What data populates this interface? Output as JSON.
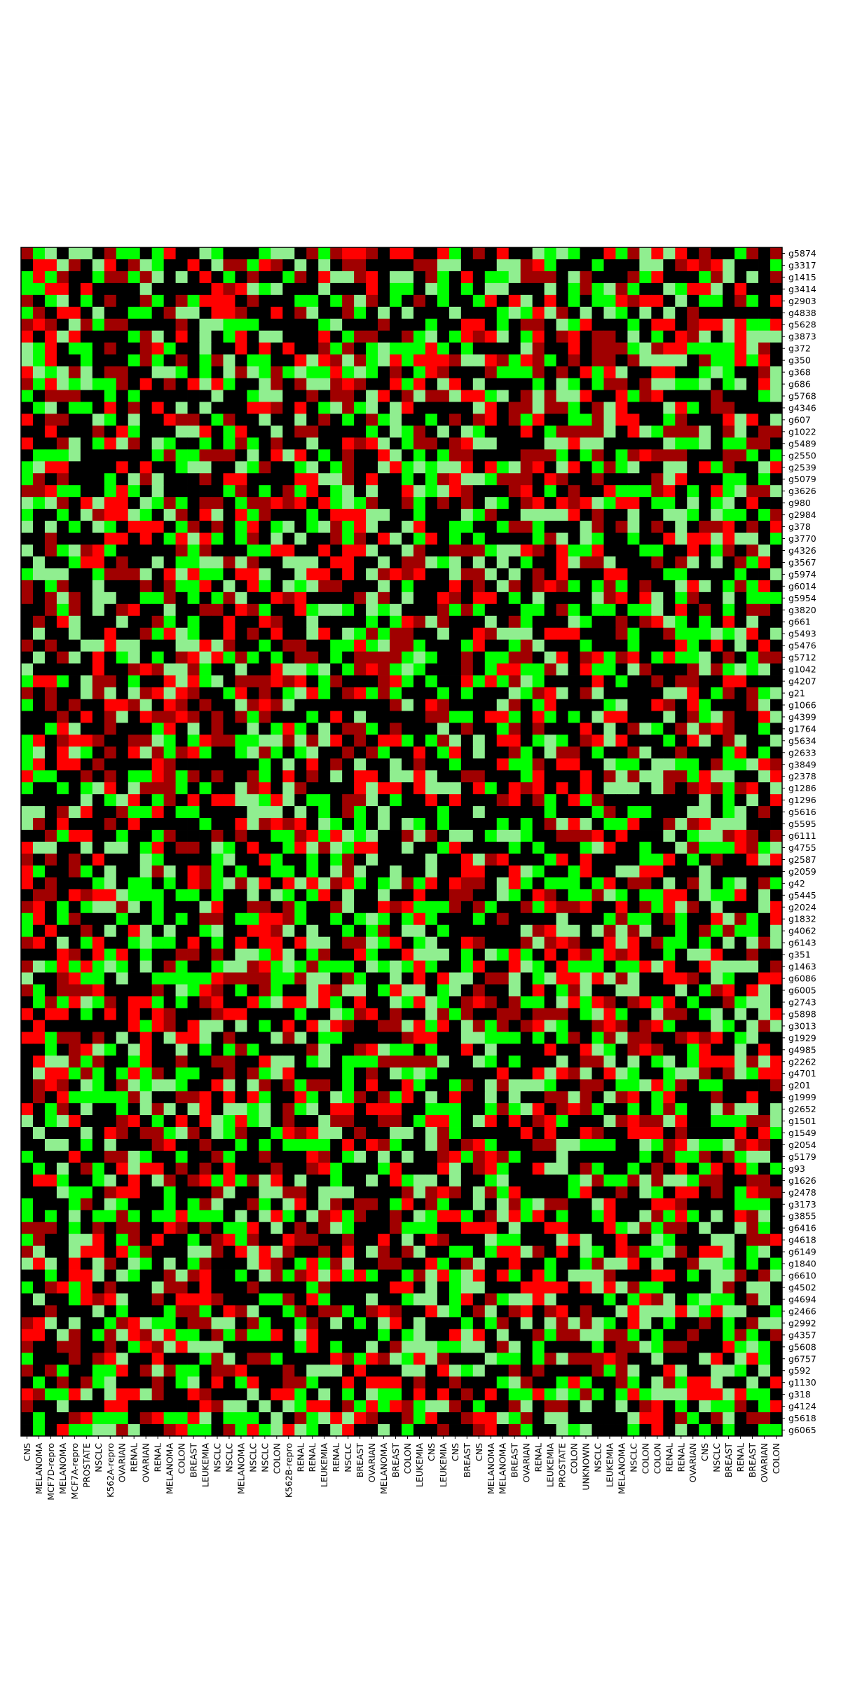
{
  "chart_data": {
    "type": "heatmap",
    "title": "",
    "xlabel": "",
    "ylabel": "",
    "legend": "none",
    "grid": false,
    "colors": {
      "strong_negative": "#00ff00",
      "weak_negative": "#90ee90",
      "neutral": "#000000",
      "weak_positive": "#a00000",
      "strong_positive": "#ff0000"
    },
    "value_scale": "categorical levels: -2 strong down (green), -1 weak down (light green), 0 neutral (black), 1 weak up (dark red), 2 strong up (red)",
    "columns": [
      "CNS",
      "MELANOMA",
      "MCF7D-repro",
      "MELANOMA",
      "MCF7A-repro",
      "PROSTATE",
      "NSCLC",
      "K562A-repro",
      "OVARIAN",
      "RENAL",
      "OVARIAN",
      "RENAL",
      "MELANOMA",
      "COLON",
      "BREAST",
      "LEUKEMIA",
      "NSCLC",
      "NSCLC",
      "MELANOMA",
      "NSCLC",
      "NSCLC",
      "COLON",
      "K562B-repro",
      "RENAL",
      "RENAL",
      "LEUKEMIA",
      "RENAL",
      "NSCLC",
      "BREAST",
      "OVARIAN",
      "MELANOMA",
      "BREAST",
      "COLON",
      "LEUKEMIA",
      "CNS",
      "LEUKEMIA",
      "CNS",
      "BREAST",
      "CNS",
      "MELANOMA",
      "MELANOMA",
      "BREAST",
      "OVARIAN",
      "RENAL",
      "LEUKEMIA",
      "PROSTATE",
      "COLON",
      "UNKNOWN",
      "NSCLC",
      "LEUKEMIA",
      "MELANOMA",
      "NSCLC",
      "COLON",
      "COLON",
      "RENAL",
      "RENAL",
      "OVARIAN",
      "CNS",
      "NSCLC",
      "BREAST",
      "RENAL",
      "BREAST",
      "OVARIAN",
      "COLON"
    ],
    "rows": [
      "g5874",
      "g3317",
      "g1415",
      "g3414",
      "g2903",
      "g4838",
      "g5628",
      "g3873",
      "g372",
      "g350",
      "g368",
      "g686",
      "g5768",
      "g4346",
      "g607",
      "g1022",
      "g5489",
      "g2550",
      "g2539",
      "g5079",
      "g3626",
      "g980",
      "g2984",
      "g378",
      "g3770",
      "g4326",
      "g3567",
      "g5974",
      "g6014",
      "g5954",
      "g3820",
      "g661",
      "g5493",
      "g5476",
      "g5712",
      "g1042",
      "g4207",
      "g21",
      "g1066",
      "g4399",
      "g1764",
      "g5634",
      "g2633",
      "g3849",
      "g2378",
      "g1286",
      "g1296",
      "g5616",
      "g5595",
      "g6111",
      "g4755",
      "g2587",
      "g2059",
      "g42",
      "g5445",
      "g2024",
      "g1832",
      "g4062",
      "g6143",
      "g351",
      "g1463",
      "g6086",
      "g6005",
      "g2743",
      "g5898",
      "g3013",
      "g1929",
      "g4985",
      "g2262",
      "g4701",
      "g201",
      "g1999",
      "g2652",
      "g1501",
      "g1549",
      "g2054",
      "g5179",
      "g93",
      "g1626",
      "g2478",
      "g3173",
      "g3855",
      "g6416",
      "g4618",
      "g6149",
      "g1840",
      "g6610",
      "g4502",
      "g4694",
      "g2466",
      "g2992",
      "g4357",
      "g5608",
      "g6757",
      "g592",
      "g1130",
      "g318",
      "g4124",
      "g5618",
      "g6065"
    ]
  }
}
